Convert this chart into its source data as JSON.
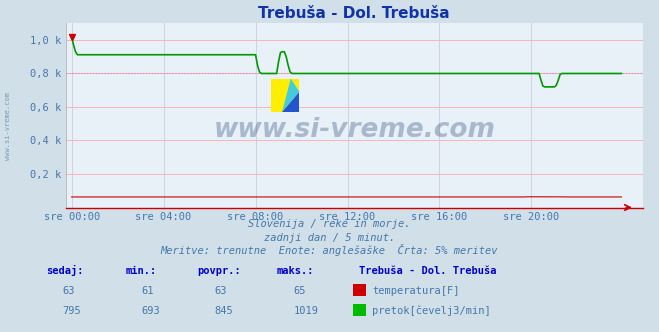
{
  "title": "Trebuša - Dol. Trebuša",
  "bg_color": "#d0dfe8",
  "plot_bg_color": "#e8f0f8",
  "grid_color_h": "#ffaaaa",
  "grid_color_v": "#ccccdd",
  "xlabel_color": "#4477aa",
  "ylabel_color": "#4477aa",
  "title_color": "#1133aa",
  "subtitle_lines": [
    "Slovenija / reke in morje.",
    "zadnji dan / 5 minut.",
    "Meritve: trenutne  Enote: anglešaške  Črta: 5% meritev"
  ],
  "subtitle_color": "#4477aa",
  "xtick_labels": [
    "sre 00:00",
    "sre 04:00",
    "sre 08:00",
    "sre 12:00",
    "sre 16:00",
    "sre 20:00"
  ],
  "xtick_positions": [
    0,
    48,
    96,
    144,
    192,
    240
  ],
  "ytick_labels": [
    "0,2 k",
    "0,4 k",
    "0,6 k",
    "0,8 k",
    "1,0 k"
  ],
  "ytick_values": [
    200,
    400,
    600,
    800,
    1000
  ],
  "ymax": 1100,
  "ymin": 0,
  "n_points": 288,
  "watermark": "www.si-vreme.com",
  "watermark_color": "#1a3a6a",
  "table_header_color": "#0000cc",
  "table_value_color": "#4477aa",
  "table_headers": [
    "sedaj:",
    "min.:",
    "povpr.:",
    "maks.:"
  ],
  "station_label": "Trebuša - Dol. Trebuša",
  "row1_values": [
    "63",
    "61",
    "63",
    "65"
  ],
  "row1_color": "#cc0000",
  "row1_label": "temperatura[F]",
  "row2_values": [
    "795",
    "693",
    "845",
    "1019"
  ],
  "row2_color": "#00bb00",
  "row2_label": "pretok[čevelj3/min]",
  "temp_line_color": "#cc0000",
  "flow_line_color": "#009900",
  "dotted_line_color": "#cc88cc",
  "spine_bottom_color": "#cc0000",
  "arrow_color": "#cc0000"
}
